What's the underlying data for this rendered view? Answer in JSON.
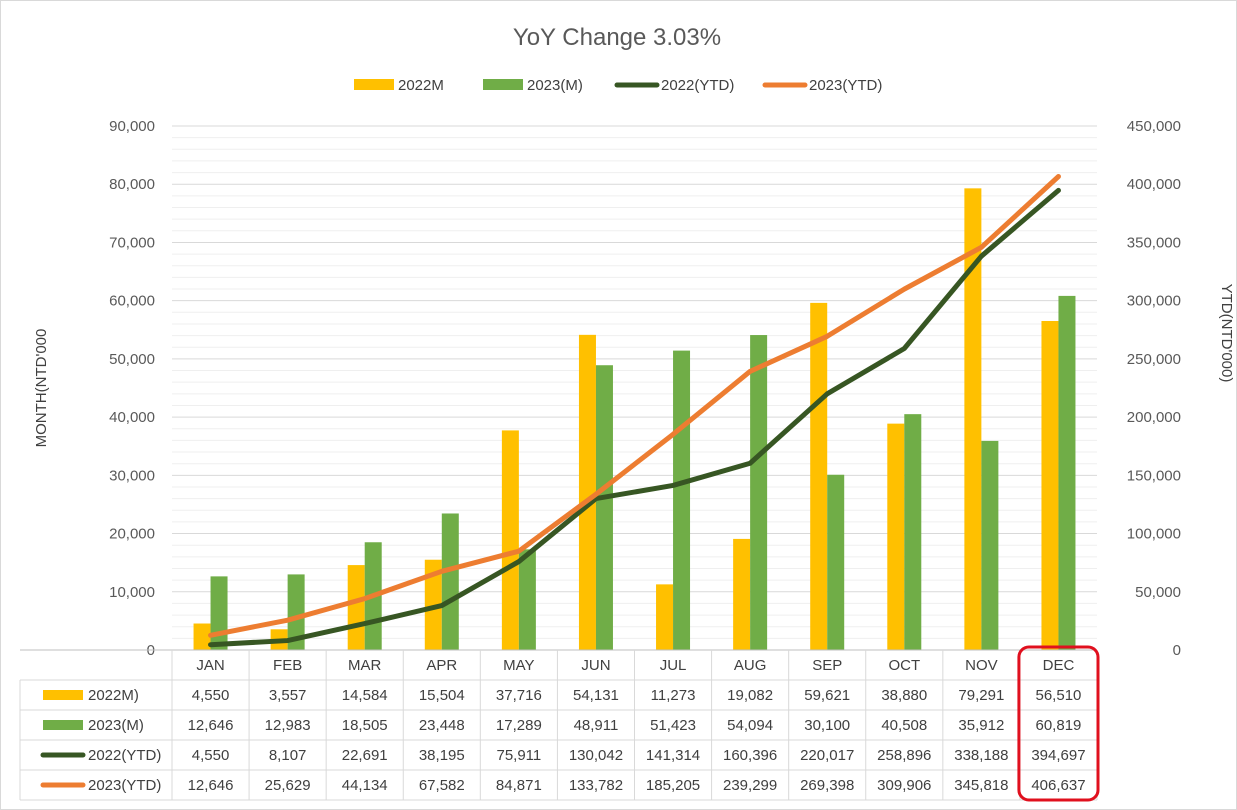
{
  "chart_data": {
    "type": "bar",
    "title": "YoY Change 3.03%",
    "categories": [
      "JAN",
      "FEB",
      "MAR",
      "APR",
      "MAY",
      "JUN",
      "JUL",
      "AUG",
      "SEP",
      "OCT",
      "NOV",
      "DEC"
    ],
    "series": [
      {
        "name": "2022M)",
        "legend_name": "2022M",
        "type": "bar",
        "axis": "left",
        "color": "#FFC000",
        "values": [
          4550,
          3557,
          14584,
          15504,
          37716,
          54131,
          11273,
          19082,
          59621,
          38880,
          79291,
          56510
        ],
        "labels": [
          "4,550",
          "3,557",
          "14,584",
          "15,504",
          "37,716",
          "54,131",
          "11,273",
          "19,082",
          "59,621",
          "38,880",
          "79,291",
          "56,510"
        ]
      },
      {
        "name": "2023(M)",
        "legend_name": "2023(M)",
        "type": "bar",
        "axis": "left",
        "color": "#70AD47",
        "values": [
          12646,
          12983,
          18505,
          23448,
          17289,
          48911,
          51423,
          54094,
          30100,
          40508,
          35912,
          60819
        ],
        "labels": [
          "12,646",
          "12,983",
          "18,505",
          "23,448",
          "17,289",
          "48,911",
          "51,423",
          "54,094",
          "30,100",
          "40,508",
          "35,912",
          "60,819"
        ]
      },
      {
        "name": "2022(YTD)",
        "legend_name": "2022(YTD)",
        "type": "line",
        "axis": "right",
        "color": "#375623",
        "values": [
          4550,
          8107,
          22691,
          38195,
          75911,
          130042,
          141314,
          160396,
          220017,
          258896,
          338188,
          394697
        ],
        "labels": [
          "4,550",
          "8,107",
          "22,691",
          "38,195",
          "75,911",
          "130,042",
          "141,314",
          "160,396",
          "220,017",
          "258,896",
          "338,188",
          "394,697"
        ]
      },
      {
        "name": "2023(YTD)",
        "legend_name": "2023(YTD)",
        "type": "line",
        "axis": "right",
        "color": "#ED7D31",
        "values": [
          12646,
          25629,
          44134,
          67582,
          84871,
          133782,
          185205,
          239299,
          269398,
          309906,
          345818,
          406637
        ],
        "labels": [
          "12,646",
          "25,629",
          "44,134",
          "67,582",
          "84,871",
          "133,782",
          "185,205",
          "239,299",
          "269,398",
          "309,906",
          "345,818",
          "406,637"
        ]
      }
    ],
    "ylabel": "MONTH(NTD'000",
    "y2label": "YTD(NTD'000)",
    "ylim": [
      0,
      90000
    ],
    "y2lim": [
      0,
      450000
    ],
    "yticks": [
      "0",
      "10,000",
      "20,000",
      "30,000",
      "40,000",
      "50,000",
      "60,000",
      "70,000",
      "80,000",
      "90,000"
    ],
    "y2ticks": [
      "0",
      "50,000",
      "100,000",
      "150,000",
      "200,000",
      "250,000",
      "300,000",
      "350,000",
      "400,000",
      "450,000"
    ],
    "legend_position": "top",
    "gridlines": true,
    "highlight": {
      "category": "DEC",
      "color": "#E0101E"
    }
  }
}
